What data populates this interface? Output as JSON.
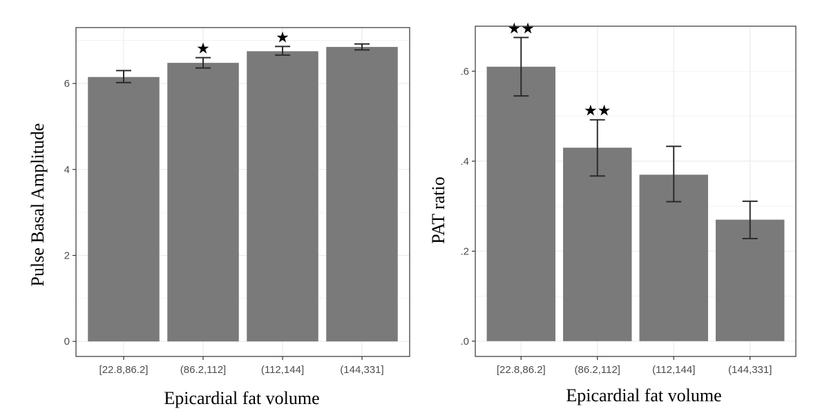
{
  "colors": {
    "bar": "#7a7a7a",
    "grid": "#ebebeb",
    "frame": "#333333",
    "errorbar": "#2b2b2b"
  },
  "chart_data": [
    {
      "type": "bar",
      "title": "",
      "xlabel": "Epicardial fat volume",
      "ylabel": "Pulse Basal Amplitude",
      "categories": [
        "[22.8,86.2]",
        "(86.2,112]",
        "(112,144]",
        "(144,331]"
      ],
      "values": [
        6.15,
        6.48,
        6.75,
        6.85
      ],
      "error_low": [
        6.02,
        6.36,
        6.66,
        6.78
      ],
      "error_high": [
        6.3,
        6.6,
        6.86,
        6.92
      ],
      "annotations": [
        "",
        "★",
        "★",
        ""
      ],
      "yticks": [
        0,
        2,
        4,
        6
      ],
      "ytick_labels": [
        "0",
        "2",
        "4",
        "6"
      ],
      "ylim": [
        -0.35,
        7.3
      ],
      "grid": true
    },
    {
      "type": "bar",
      "title": "",
      "xlabel": "Epicardial fat volume",
      "ylabel": "PAT ratio",
      "categories": [
        "[22.8,86.2]",
        "(86.2,112]",
        "(112,144]",
        "(144,331]"
      ],
      "values": [
        0.61,
        0.43,
        0.37,
        0.27
      ],
      "error_low": [
        0.545,
        0.367,
        0.31,
        0.228
      ],
      "error_high": [
        0.675,
        0.492,
        0.433,
        0.311
      ],
      "annotations": [
        "★★",
        "★★",
        "",
        ""
      ],
      "yticks": [
        0,
        0.2,
        0.4,
        0.6
      ],
      "ytick_labels": [
        ".0",
        ".2",
        ".4",
        ".6"
      ],
      "ylim": [
        -0.034,
        0.7
      ],
      "grid": true
    }
  ]
}
